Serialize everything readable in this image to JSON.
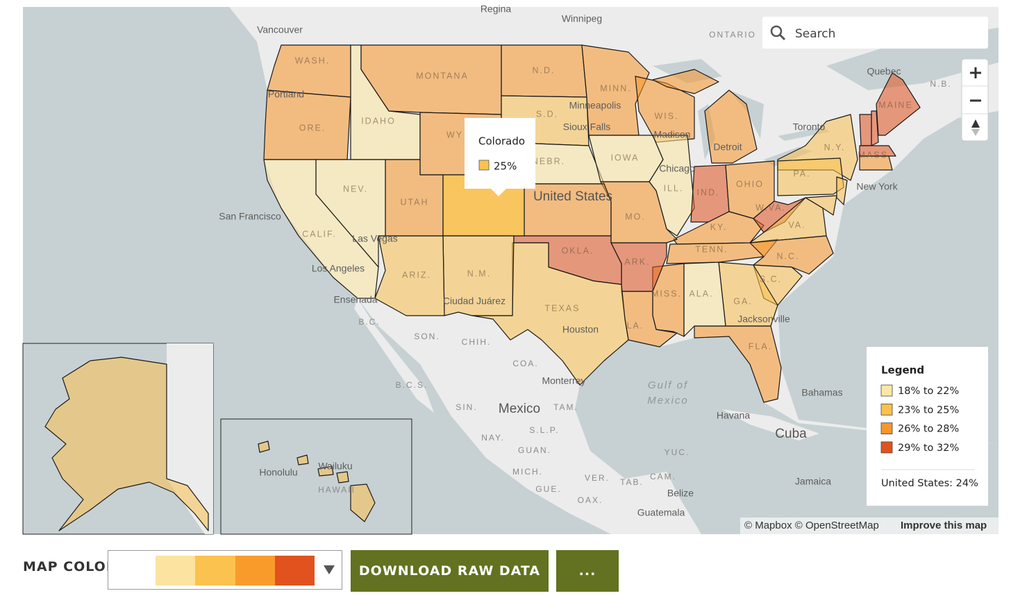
{
  "map": {
    "states": [
      {
        "label": "WASH.",
        "bin": 2
      },
      {
        "label": "ORE.",
        "bin": 2
      },
      {
        "label": "IDAHO",
        "bin": 0
      },
      {
        "label": "MONTANA",
        "bin": 2
      },
      {
        "label": "N.D.",
        "bin": 2
      },
      {
        "label": "S.D.",
        "bin": 1
      },
      {
        "label": "WY",
        "bin": 2
      },
      {
        "label": "NEBR.",
        "bin": 0
      },
      {
        "label": "MINN.",
        "bin": 2
      },
      {
        "label": "IOWA",
        "bin": 0
      },
      {
        "label": "WIS.",
        "bin": 2
      },
      {
        "label": null,
        "bin": 2
      },
      {
        "label": "ILL.",
        "bin": 0
      },
      {
        "label": "IND.",
        "bin": 3
      },
      {
        "label": "OHIO",
        "bin": 2
      },
      {
        "label": "KY.",
        "bin": 2
      },
      {
        "label": "TENN.",
        "bin": 2
      },
      {
        "label": "W.VA.",
        "bin": 3
      },
      {
        "label": "VA.",
        "bin": 1
      },
      {
        "label": "N.C.",
        "bin": 2
      },
      {
        "label": "S.C.",
        "bin": 1
      },
      {
        "label": "GA.",
        "bin": 1
      },
      {
        "label": "ALA.",
        "bin": 0
      },
      {
        "label": "MISS.",
        "bin": 2
      },
      {
        "label": "FLA.",
        "bin": 2
      },
      {
        "label": "LA.",
        "bin": 2
      },
      {
        "label": "ARK.",
        "bin": 3
      },
      {
        "label": "MO.",
        "bin": 2
      },
      {
        "label": null,
        "bin": 2
      },
      {
        "label": "OKLA.",
        "bin": 3
      },
      {
        "label": "TEXAS",
        "bin": 1
      },
      {
        "label": null,
        "bin": 1
      },
      {
        "label": "N.M.",
        "bin": 1
      },
      {
        "label": "ARIZ.",
        "bin": 1
      },
      {
        "label": "UTAH",
        "bin": 2
      },
      {
        "label": "NEV.",
        "bin": 0
      },
      {
        "label": "CALIF.",
        "bin": 0
      },
      {
        "label": "N.Y.",
        "bin": 1
      },
      {
        "label": "PA.",
        "bin": 1
      },
      {
        "label": null,
        "bin": 1
      },
      {
        "label": null,
        "bin": 1
      },
      {
        "label": null,
        "bin": 3
      },
      {
        "label": null,
        "bin": 3
      },
      {
        "label": "MAINE",
        "bin": 3
      },
      {
        "label": "MASS.",
        "bin": 3
      },
      {
        "label": null,
        "bin": 2
      },
      {
        "label": null,
        "bin": 1
      },
      {
        "label": null,
        "bin": 1
      }
    ],
    "places": [
      "Regina",
      "Winnipeg",
      "Vancouver",
      "ONTARIO",
      "Quebec",
      "N.B.",
      "Portland",
      "Minneapolis",
      "Sioux Falls",
      "Madison",
      "Toronto",
      "Detroit",
      "Chicago",
      "New York",
      "San Francisco",
      "Las Vegas",
      "Los Angeles",
      "United States",
      "Ensenada",
      "B.C.",
      "SON.",
      "CHIH.",
      "COA.",
      "Monterrey",
      "B.C.S.",
      "SIN.",
      "Mexico",
      "TAM.",
      "NAY.",
      "S.L.P.",
      "GUAN.",
      "MICH.",
      "GUE.",
      "VER.",
      "TAB.",
      "OAX.",
      "YUC.",
      "CAM.",
      "Belize",
      "Guatemala",
      "Houston",
      "Ciudad Juárez",
      "Jacksonville",
      "Gulf of",
      "Mexico",
      "Bahamas",
      "Havana",
      "Cuba",
      "Jamaica",
      "Honolulu",
      "Wailuku",
      "HAWAII"
    ],
    "tooltip": {
      "title": "Colorado",
      "value": "25%"
    },
    "legend": {
      "title": "Legend",
      "items": [
        {
          "label": "18% to 22%",
          "color": "#fde8a3"
        },
        {
          "label": "23% to 25%",
          "color": "#fbc150"
        },
        {
          "label": "26% to 28%",
          "color": "#f7962a"
        },
        {
          "label": "29% to 32%",
          "color": "#e0521f"
        }
      ],
      "note": "United States: 24%"
    },
    "search_placeholder": "Search",
    "attribution": "© Mapbox © OpenStreetMap",
    "improve": "Improve this map"
  },
  "controls": {
    "map_color_label": "MAP COLOR",
    "palette": [
      "#ffffff",
      "#fde3a0",
      "#fcc24f",
      "#f99b2b",
      "#e1521f"
    ],
    "download": "DOWNLOAD RAW DATA",
    "more": "..."
  }
}
